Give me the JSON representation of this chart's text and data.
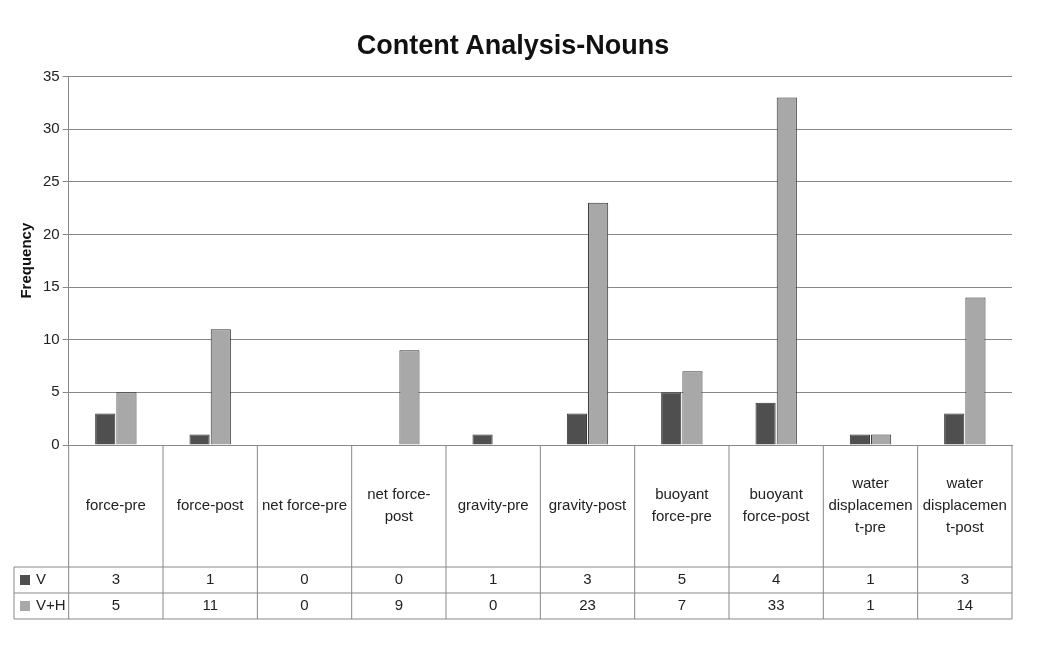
{
  "chart_data": {
    "type": "bar",
    "title": "Content Analysis-Nouns",
    "ylabel": "Frequency",
    "categories": [
      "force-pre",
      "force-post",
      "net force-pre",
      "net force-post",
      "gravity-pre",
      "gravity-post",
      "buoyant force-pre",
      "buoyant force-post",
      "water displacement-pre",
      "water displacement-post"
    ],
    "series": [
      {
        "name": "V",
        "color": "#4f4f4f",
        "values": [
          3,
          1,
          0,
          0,
          1,
          3,
          5,
          4,
          1,
          3
        ]
      },
      {
        "name": "V+H",
        "color": "#a8a8a8",
        "values": [
          5,
          11,
          0,
          9,
          0,
          23,
          7,
          33,
          1,
          14
        ]
      }
    ],
    "ylim": [
      0,
      35
    ],
    "yticks": [
      0,
      5,
      10,
      15,
      20,
      25,
      30,
      35
    ],
    "grid": "y",
    "legend": "bottom",
    "data_labels": true
  }
}
